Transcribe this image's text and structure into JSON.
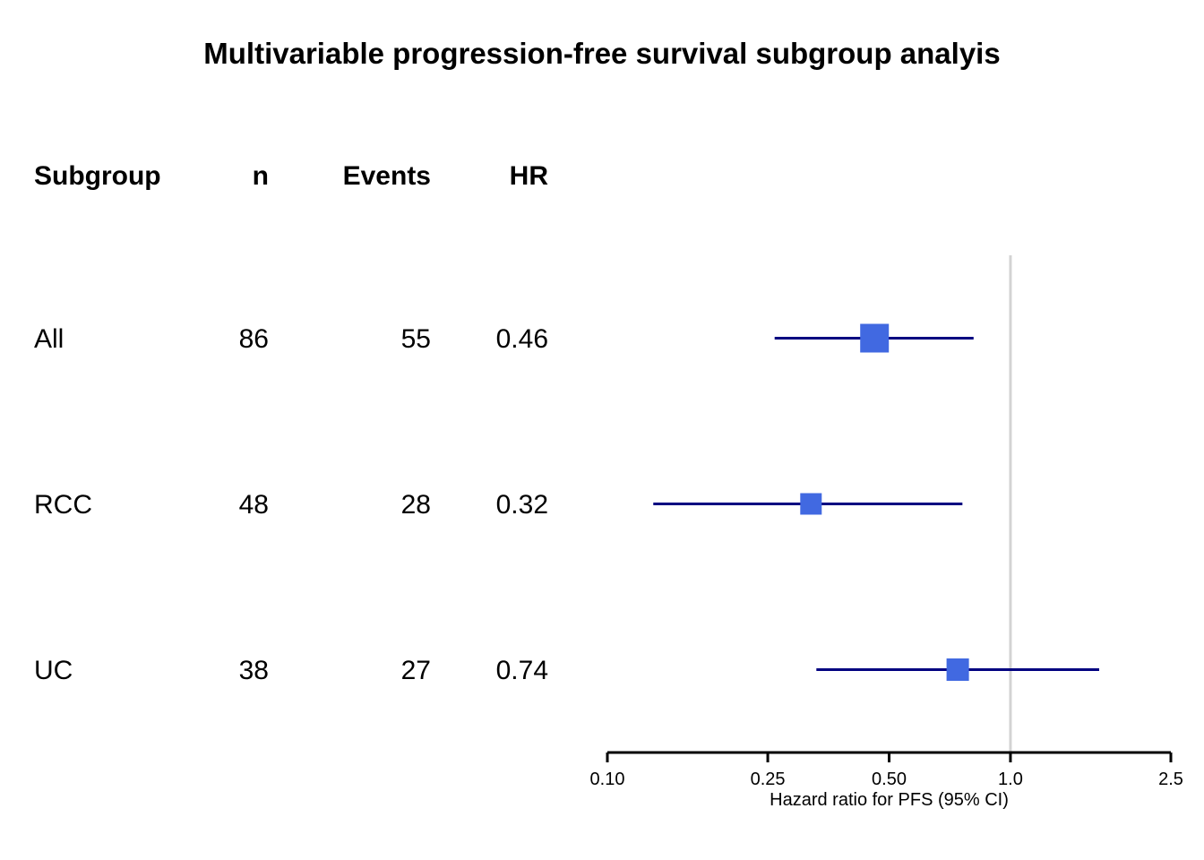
{
  "title": "Multivariable progression-free survival subgroup analyis",
  "table": {
    "headers": [
      "Subgroup",
      "n",
      "Events",
      "HR"
    ],
    "rows": [
      {
        "subgroup": "All",
        "n": "86",
        "events": "55",
        "hr": "0.46"
      },
      {
        "subgroup": "RCC",
        "n": "48",
        "events": "28",
        "hr": "0.32"
      },
      {
        "subgroup": "UC",
        "n": "38",
        "events": "27",
        "hr": "0.74"
      }
    ]
  },
  "chart_data": {
    "type": "forest",
    "title": "Multivariable progression-free survival subgroup analyis",
    "xlabel": "Hazard ratio for PFS (95% CI)",
    "x_scale": "log",
    "x_range": [
      0.1,
      2.5
    ],
    "x_tick_labels": [
      "0.10",
      "0.25",
      "0.50",
      "1.0",
      "2.5"
    ],
    "x_tick_values": [
      0.1,
      0.25,
      0.5,
      1.0,
      2.5
    ],
    "reference_line": 1.0,
    "grid": false,
    "legend": false,
    "series": [
      {
        "subgroup": "All",
        "n": 86,
        "events": 55,
        "hr": 0.46,
        "ci_lower": 0.26,
        "ci_upper": 0.81,
        "box_size": 32
      },
      {
        "subgroup": "RCC",
        "n": 48,
        "events": 28,
        "hr": 0.32,
        "ci_lower": 0.13,
        "ci_upper": 0.76,
        "box_size": 24
      },
      {
        "subgroup": "UC",
        "n": 38,
        "events": 27,
        "hr": 0.74,
        "ci_lower": 0.33,
        "ci_upper": 1.66,
        "box_size": 25
      }
    ],
    "colors": {
      "box": "#4169E1",
      "ci_line": "#000080",
      "reference_line": "#D3D3D3",
      "axis": "#000000",
      "text": "#000000"
    }
  }
}
